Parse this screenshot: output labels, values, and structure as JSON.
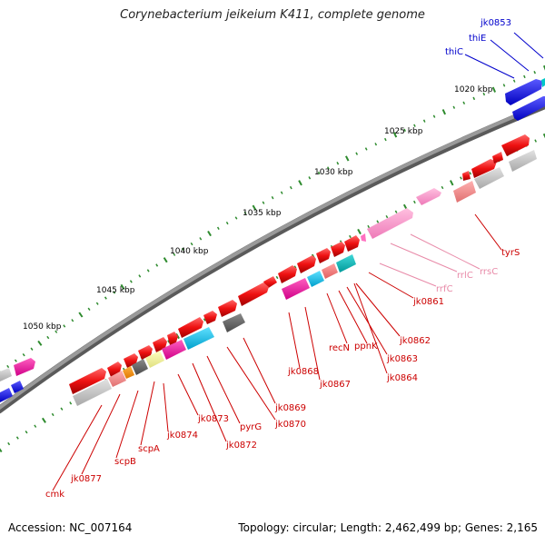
{
  "title": "Corynebacterium jeikeium K411, complete genome",
  "footer": {
    "accession": "Accession: NC_007164",
    "info": "Topology: circular; Length: 2,462,499 bp; Genes: 2,165"
  },
  "colors": {
    "backbone": "#7a7a7a",
    "tick": "#2e8b2e",
    "cds": "#ee1111",
    "rrna": "#ff88cc",
    "trna": "#008080",
    "blue": "#1a1aee",
    "label_red": "#cc0000",
    "label_pink": "#e88aa8",
    "label_blue": "#0000cc"
  },
  "scale_labels": [
    {
      "text": "1020 kbp"
    },
    {
      "text": "1025 kbp"
    },
    {
      "text": "1030 kbp"
    },
    {
      "text": "1035 kbp"
    },
    {
      "text": "1040 kbp"
    },
    {
      "text": "1045 kbp"
    },
    {
      "text": "1050 kbp"
    }
  ],
  "gene_labels": [
    {
      "text": "jk0853",
      "color": "blue"
    },
    {
      "text": "thiE",
      "color": "blue"
    },
    {
      "text": "thiC",
      "color": "blue"
    },
    {
      "text": "tyrS",
      "color": "red"
    },
    {
      "text": "rrsC",
      "color": "pink"
    },
    {
      "text": "rrlC",
      "color": "pink"
    },
    {
      "text": "rrfC",
      "color": "pink"
    },
    {
      "text": "jk0861",
      "color": "red"
    },
    {
      "text": "jk0862",
      "color": "red"
    },
    {
      "text": "ppnK",
      "color": "red"
    },
    {
      "text": "jk0863",
      "color": "red"
    },
    {
      "text": "recN",
      "color": "red"
    },
    {
      "text": "jk0864",
      "color": "red"
    },
    {
      "text": "jk0867",
      "color": "red"
    },
    {
      "text": "jk0868",
      "color": "red"
    },
    {
      "text": "jk0869",
      "color": "red"
    },
    {
      "text": "jk0870",
      "color": "red"
    },
    {
      "text": "pyrG",
      "color": "red"
    },
    {
      "text": "jk0872",
      "color": "red"
    },
    {
      "text": "jk0873",
      "color": "red"
    },
    {
      "text": "jk0874",
      "color": "red"
    },
    {
      "text": "scpA",
      "color": "red"
    },
    {
      "text": "scpB",
      "color": "red"
    },
    {
      "text": "jk0877",
      "color": "red"
    },
    {
      "text": "cmk",
      "color": "red"
    }
  ]
}
